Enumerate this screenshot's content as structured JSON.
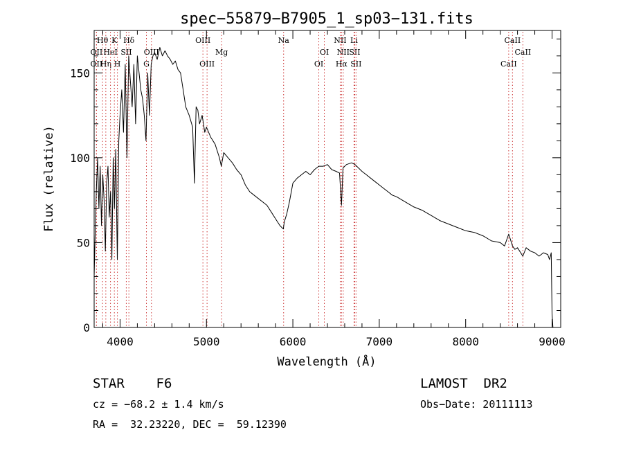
{
  "chart_data": {
    "type": "line",
    "title": "spec−55879−B7905_1_sp03−131.fits",
    "xlabel": "Wavelength (Å)",
    "ylabel": "Flux (relative)",
    "xlim": [
      3700,
      9100
    ],
    "ylim": [
      0,
      175
    ],
    "xticks": [
      4000,
      5000,
      6000,
      7000,
      8000,
      9000
    ],
    "yticks": [
      0,
      50,
      100,
      150
    ],
    "grid": false,
    "line_color": "#000000",
    "marker_color": "#cc3333",
    "series": [
      {
        "x": [
          3700,
          3712,
          3725,
          3740,
          3755,
          3770,
          3785,
          3800,
          3815,
          3830,
          3845,
          3860,
          3875,
          3890,
          3905,
          3920,
          3935,
          3950,
          3968,
          3985,
          4000,
          4020,
          4040,
          4060,
          4080,
          4100,
          4120,
          4140,
          4160,
          4180,
          4200,
          4220,
          4240,
          4260,
          4280,
          4300,
          4320,
          4340,
          4360,
          4380,
          4400,
          4430,
          4460,
          4490,
          4520,
          4550,
          4580,
          4610,
          4640,
          4670,
          4700,
          4730,
          4760,
          4800,
          4840,
          4861,
          4880,
          4900,
          4920,
          4950,
          4980,
          5000,
          5050,
          5100,
          5150,
          5172,
          5200,
          5250,
          5300,
          5350,
          5400,
          5450,
          5500,
          5550,
          5600,
          5650,
          5700,
          5750,
          5800,
          5850,
          5890,
          5900,
          5930,
          5960,
          6000,
          6050,
          6100,
          6150,
          6200,
          6250,
          6300,
          6350,
          6400,
          6450,
          6500,
          6540,
          6563,
          6580,
          6620,
          6680,
          6720,
          6760,
          6800,
          6850,
          6900,
          6950,
          7000,
          7050,
          7100,
          7150,
          7200,
          7300,
          7400,
          7500,
          7600,
          7700,
          7800,
          7900,
          8000,
          8100,
          8200,
          8300,
          8400,
          8450,
          8498,
          8542,
          8570,
          8600,
          8662,
          8700,
          8750,
          8800,
          8850,
          8900,
          8950,
          8970,
          8990,
          9000,
          9010
        ],
        "y": [
          30,
          55,
          80,
          100,
          70,
          95,
          60,
          90,
          75,
          45,
          85,
          95,
          65,
          80,
          40,
          100,
          70,
          105,
          40,
          110,
          125,
          140,
          115,
          155,
          100,
          160,
          145,
          130,
          155,
          120,
          160,
          150,
          140,
          135,
          125,
          110,
          150,
          125,
          155,
          160,
          162,
          158,
          165,
          160,
          163,
          160,
          158,
          155,
          157,
          152,
          150,
          140,
          130,
          125,
          118,
          85,
          130,
          128,
          120,
          125,
          115,
          118,
          112,
          108,
          100,
          95,
          103,
          100,
          97,
          93,
          90,
          84,
          80,
          78,
          76,
          74,
          72,
          68,
          64,
          60,
          58,
          62,
          67,
          74,
          85,
          88,
          90,
          92,
          90,
          93,
          95,
          95,
          96,
          93,
          92,
          91,
          72,
          94,
          96,
          97,
          96,
          94,
          92,
          90,
          88,
          86,
          84,
          82,
          80,
          78,
          77,
          74,
          71,
          69,
          66,
          63,
          61,
          59,
          57,
          56,
          54,
          51,
          50,
          48,
          55,
          48,
          46,
          47,
          42,
          47,
          45,
          44,
          42,
          44,
          43,
          40,
          44,
          8,
          0
        ]
      }
    ],
    "line_markers": [
      {
        "name": "Hθ",
        "x": 3797,
        "row": 1
      },
      {
        "name": "OII",
        "x": 3727,
        "row": 2
      },
      {
        "name": "OII",
        "x": 3727,
        "row": 3
      },
      {
        "name": "Hη",
        "x": 3835,
        "row": 3
      },
      {
        "name": "HeI",
        "x": 3889,
        "row": 2
      },
      {
        "name": "K",
        "x": 3934,
        "row": 1
      },
      {
        "name": "H",
        "x": 3969,
        "row": 3
      },
      {
        "name": "SII",
        "x": 4072,
        "row": 2
      },
      {
        "name": "Hδ",
        "x": 4102,
        "row": 1
      },
      {
        "name": "G",
        "x": 4305,
        "row": 3
      },
      {
        "name": "OIII",
        "x": 4363,
        "row": 2
      },
      {
        "name": "OIII",
        "x": 4959,
        "row": 1
      },
      {
        "name": "OIII",
        "x": 5007,
        "row": 3
      },
      {
        "name": "Mg",
        "x": 5175,
        "row": 2
      },
      {
        "name": "Na",
        "x": 5893,
        "row": 1
      },
      {
        "name": "OI",
        "x": 6300,
        "row": 3
      },
      {
        "name": "OI",
        "x": 6364,
        "row": 2
      },
      {
        "name": "NII",
        "x": 6548,
        "row": 1
      },
      {
        "name": "NII",
        "x": 6583,
        "row": 2
      },
      {
        "name": "Hα",
        "x": 6563,
        "row": 3
      },
      {
        "name": "Li",
        "x": 6708,
        "row": 1
      },
      {
        "name": "SII",
        "x": 6716,
        "row": 2
      },
      {
        "name": "SII",
        "x": 6731,
        "row": 3
      },
      {
        "name": "CaII",
        "x": 8498,
        "row": 3
      },
      {
        "name": "CaII",
        "x": 8542,
        "row": 1
      },
      {
        "name": "CaII",
        "x": 8662,
        "row": 2
      }
    ]
  },
  "info": {
    "class": "STAR    F6",
    "survey": "LAMOST  DR2",
    "cz": "cz = −68.2 ± 1.4 km/s",
    "obs_date": "Obs−Date: 20111113",
    "radec": "RA =  32.23220, DEC =  59.12390"
  }
}
